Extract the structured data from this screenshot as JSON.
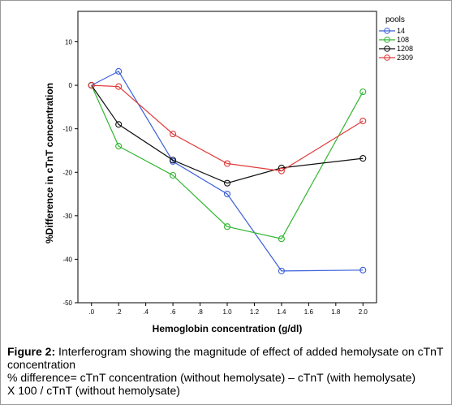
{
  "chart_data": {
    "type": "line",
    "xlabel": "Hemoglobin concentration (g/dl)",
    "ylabel": "%Difference in cTnT concentration",
    "x_ticks": [
      ".0",
      ".2",
      ".4",
      ".6",
      ".8",
      "1.0",
      "1.2",
      "1.4",
      "1.6",
      "1.8",
      "2.0"
    ],
    "y_ticks": [
      "10",
      "0",
      "-10",
      "-20",
      "-30",
      "-40",
      "-50"
    ],
    "xlim": [
      -0.1,
      2.1
    ],
    "ylim": [
      -50,
      17
    ],
    "grid": false,
    "legend_title": "pools",
    "legend_position": "top-right",
    "series": [
      {
        "name": "14",
        "color": "#3b5fd9",
        "points": [
          [
            0,
            0
          ],
          [
            0.2,
            3.2
          ],
          [
            0.6,
            -17.5
          ],
          [
            1.0,
            -25
          ],
          [
            1.4,
            -42.7
          ],
          [
            2.0,
            -42.5
          ]
        ]
      },
      {
        "name": "108",
        "color": "#2fb52f",
        "points": [
          [
            0,
            0
          ],
          [
            0.2,
            -14
          ],
          [
            0.6,
            -20.7
          ],
          [
            1.0,
            -32.5
          ],
          [
            1.4,
            -35.3
          ],
          [
            2.0,
            -1.5
          ]
        ]
      },
      {
        "name": "1208",
        "color": "#111111",
        "points": [
          [
            0,
            0
          ],
          [
            0.2,
            -9
          ],
          [
            0.6,
            -17.2
          ],
          [
            1.0,
            -22.5
          ],
          [
            1.4,
            -19
          ],
          [
            2.0,
            -16.8
          ]
        ]
      },
      {
        "name": "2309",
        "color": "#e03a3a",
        "points": [
          [
            0,
            0
          ],
          [
            0.2,
            -0.3
          ],
          [
            0.6,
            -11.2
          ],
          [
            1.0,
            -18
          ],
          [
            1.4,
            -19.7
          ],
          [
            2.0,
            -8.2
          ]
        ]
      }
    ]
  },
  "caption": {
    "figure_label": "Figure 2:",
    "figure_text": " Interferogram showing the magnitude of effect of added hemolysate on cTnT concentration",
    "line2": "% difference= cTnT concentration (without hemolysate) – cTnT (with hemolysate)",
    "line3": "X 100 / cTnT (without hemolysate)"
  }
}
